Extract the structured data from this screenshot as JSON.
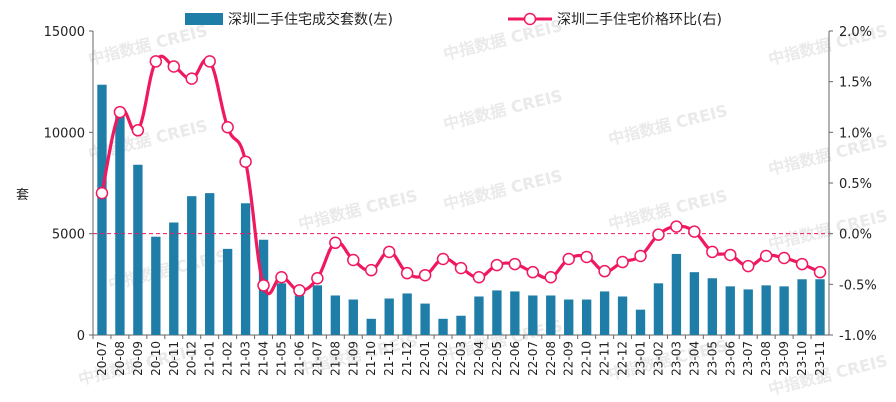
{
  "chart_data": {
    "type": "bar",
    "categories": [
      "20-07",
      "20-08",
      "20-09",
      "20-10",
      "20-11",
      "20-12",
      "21-01",
      "21-02",
      "21-03",
      "21-04",
      "21-05",
      "21-06",
      "21-07",
      "21-08",
      "21-09",
      "21-10",
      "21-11",
      "21-12",
      "22-01",
      "22-02",
      "22-03",
      "22-04",
      "22-05",
      "22-06",
      "22-07",
      "22-08",
      "22-09",
      "22-10",
      "22-11",
      "22-12",
      "23-01",
      "23-02",
      "23-03",
      "23-04",
      "23-05",
      "23-06",
      "23-07",
      "23-08",
      "23-09",
      "23-10",
      "23-11"
    ],
    "series": [
      {
        "name": "深圳二手住宅成交套数(左)",
        "type": "bar",
        "axis": "left",
        "color": "#1f7ea8",
        "values": [
          12350,
          11000,
          8400,
          4850,
          5550,
          6850,
          7000,
          4250,
          6500,
          4700,
          2550,
          1950,
          2450,
          1950,
          1750,
          800,
          1800,
          2050,
          1550,
          800,
          950,
          1900,
          2200,
          2150,
          1950,
          1950,
          1750,
          1750,
          2150,
          1900,
          1250,
          2550,
          4000,
          3100,
          2800,
          2400,
          2250,
          2450,
          2400,
          2750,
          2750
        ]
      },
      {
        "name": "深圳二手住宅价格环比(右)",
        "type": "line",
        "axis": "right",
        "color": "#f0195f",
        "values": [
          0.4,
          1.2,
          1.02,
          1.7,
          1.65,
          1.53,
          1.7,
          1.05,
          0.71,
          -0.51,
          -0.43,
          -0.56,
          -0.44,
          -0.09,
          -0.26,
          -0.36,
          -0.18,
          -0.39,
          -0.41,
          -0.25,
          -0.34,
          -0.43,
          -0.31,
          -0.3,
          -0.38,
          -0.43,
          -0.25,
          -0.23,
          -0.37,
          -0.28,
          -0.22,
          -0.01,
          0.07,
          0.02,
          -0.18,
          -0.21,
          -0.32,
          -0.22,
          -0.24,
          -0.3,
          -0.38
        ]
      }
    ],
    "y_left": {
      "label": "套",
      "ticks": [
        "0",
        "5000",
        "10000",
        "15000"
      ],
      "ylim": [
        0,
        15000
      ]
    },
    "y_right": {
      "ticks": [
        "-1.0%",
        "-0.5%",
        "0.0%",
        "0.5%",
        "1.0%",
        "1.5%",
        "2.0%"
      ],
      "ylim": [
        -1.0,
        2.0
      ]
    },
    "reference_line": {
      "axis": "right",
      "value": 0.0,
      "color": "#f0195f",
      "style": "dashed"
    },
    "legend_position": "top",
    "grid": false
  },
  "watermark": "中指数据 CREIS"
}
